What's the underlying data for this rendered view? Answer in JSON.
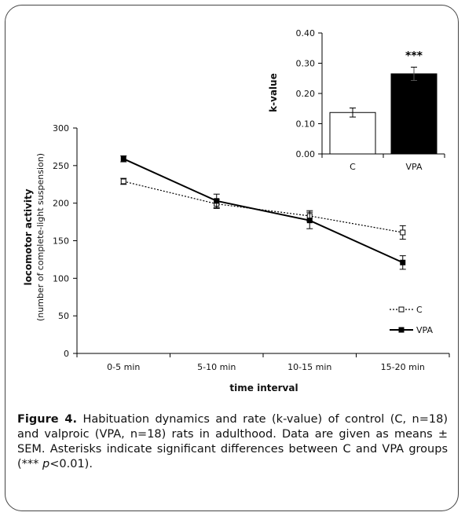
{
  "chart_data": [
    {
      "type": "line",
      "categories": [
        "0-5 min",
        "5-10 min",
        "10-15 min",
        "15-20 min"
      ],
      "series": [
        {
          "name": "C",
          "values": [
            229,
            199,
            183,
            161
          ],
          "errors": [
            4,
            6,
            7,
            9
          ],
          "style": "dotted",
          "marker": "open-square",
          "color": "#000000"
        },
        {
          "name": "VPA",
          "values": [
            259,
            203,
            177,
            121
          ],
          "errors": [
            4,
            9,
            11,
            9
          ],
          "style": "solid",
          "marker": "filled-square",
          "color": "#000000"
        }
      ],
      "xlabel": "time interval",
      "ylabel": "locomotor activity",
      "ylabel_sub": "(number of complete-light suspension)",
      "ylim": [
        0,
        300
      ],
      "yticks": [
        "0",
        "50",
        "100",
        "150",
        "200",
        "250",
        "300"
      ],
      "grid": false,
      "legend": "bottom-right"
    },
    {
      "type": "bar",
      "categories": [
        "C",
        "VPA"
      ],
      "values": [
        0.137,
        0.265
      ],
      "errors": [
        0.015,
        0.022
      ],
      "colors": [
        "#ffffff",
        "#000000"
      ],
      "ylabel": "k-value",
      "ylim": [
        0,
        0.4
      ],
      "yticks": [
        "0.00",
        "0.10",
        "0.20",
        "0.30",
        "0.40"
      ],
      "annotation": "***",
      "grid": false
    }
  ],
  "caption": {
    "label": "Figure 4.",
    "text1": " Habituation dynamics and rate (k-value) of control (C, n=18) and valproic (VPA, n=18) rats in adulthood. Data are given as means ± SEM. Asterisks indicate significant differences between C and VPA groups (*** ",
    "p_symbol": "p",
    "text2": "<0.01)."
  }
}
